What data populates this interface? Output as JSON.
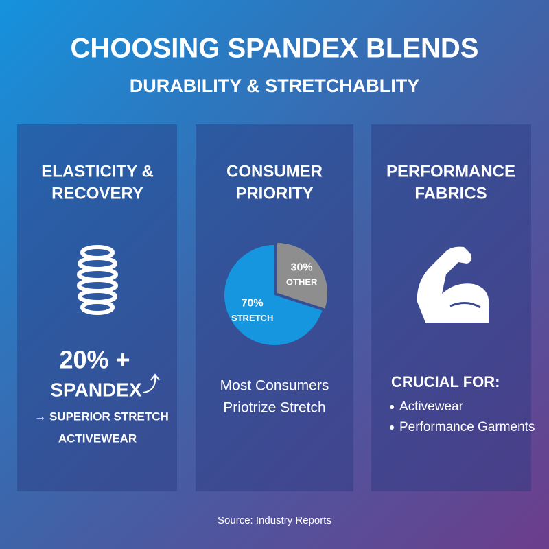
{
  "header": {
    "title": "CHOOSING SPANDEX BLENDS",
    "subtitle": "DURABILITY & STRETCHABLITY"
  },
  "panels": [
    {
      "heading": [
        "ELASTICITY &",
        "RECOVERY"
      ],
      "highlight": "20% +",
      "highlight_label": "SPANDEX",
      "lines": [
        "→ SUPERIOR STRETCH",
        "ACTIVEWEAR"
      ]
    },
    {
      "heading": [
        "CONSUMER",
        "PRIORITY"
      ],
      "chart": {
        "type": "pie",
        "categories": [
          "STRETCH",
          "OTHER"
        ],
        "values": [
          70,
          30
        ],
        "value_labels": [
          "70%",
          "30%"
        ],
        "colors": [
          "#1596de",
          "#8e8e8e"
        ]
      },
      "lines": [
        "Most Consumers",
        "Priotrize Stretch"
      ]
    },
    {
      "heading": [
        "PERFORMANCE",
        "FABRICS"
      ],
      "list_heading": "CRUCIAL FOR:",
      "items": [
        "Activewear",
        "Performance Garments"
      ]
    }
  ],
  "footer": {
    "source": "Source: Industry Reports"
  }
}
